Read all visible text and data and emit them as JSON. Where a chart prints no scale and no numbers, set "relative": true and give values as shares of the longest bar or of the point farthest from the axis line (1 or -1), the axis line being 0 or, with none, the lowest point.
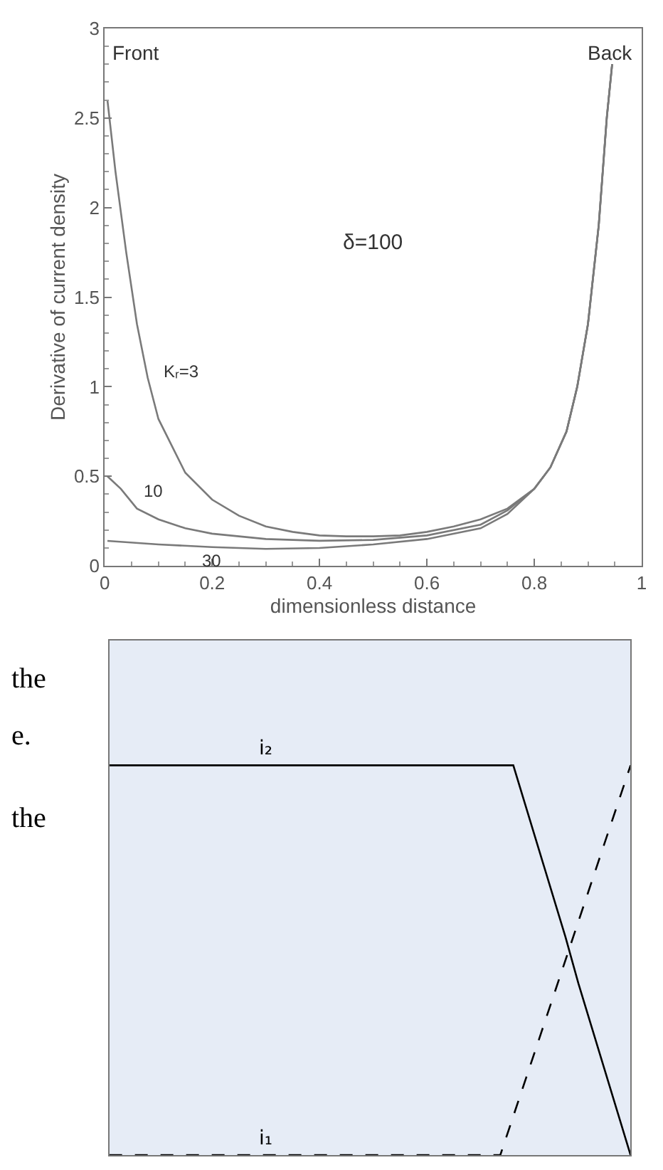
{
  "chart_data": [
    {
      "type": "line",
      "xlabel": "dimensionless distance",
      "ylabel": "Derivative of current density",
      "xlim": [
        0,
        1
      ],
      "ylim": [
        0,
        3
      ],
      "xticks": [
        0,
        {
          "value": 0.2,
          "label": "0.2"
        },
        {
          "value": 0.4,
          "label": "0.4"
        },
        {
          "value": 0.6,
          "label": "0.6"
        },
        {
          "value": 0.8,
          "label": "0.8"
        },
        1
      ],
      "yticks": [
        0,
        0.5,
        1,
        1.5,
        2,
        2.5,
        3
      ],
      "grid": false,
      "legend": false,
      "marker": "none",
      "line_style": "solid",
      "annotations": [
        "Front",
        "Back",
        "δ=100",
        {
          "text": "Kᵣ=3",
          "x": 0.08,
          "y": 1.05
        },
        {
          "text": "10",
          "x": 0.06,
          "y": 0.32
        },
        {
          "text": "30",
          "x": 0.2,
          "y": 0.105
        }
      ],
      "series": [
        {
          "color": "#7a7a7a",
          "x": [
            0.005,
            0.02,
            0.04,
            0.06,
            0.08,
            0.1,
            0.15,
            0.2,
            0.25,
            0.3,
            0.35,
            0.4,
            0.45,
            0.5,
            0.55,
            0.6,
            0.65,
            0.7,
            0.75,
            0.8,
            0.83,
            0.86,
            0.88,
            0.9,
            0.92,
            0.935,
            0.945
          ],
          "values": [
            2.6,
            2.2,
            1.75,
            1.35,
            1.05,
            0.82,
            0.52,
            0.37,
            0.28,
            0.22,
            0.19,
            0.17,
            0.165,
            0.165,
            0.17,
            0.19,
            0.22,
            0.26,
            0.32,
            0.43,
            0.55,
            0.75,
            1.0,
            1.35,
            1.9,
            2.5,
            2.8
          ]
        },
        {
          "color": "#7a7a7a",
          "x": [
            0.005,
            0.03,
            0.06,
            0.1,
            0.15,
            0.2,
            0.3,
            0.4,
            0.5,
            0.6,
            0.7,
            0.75,
            0.8,
            0.83,
            0.86,
            0.88,
            0.9,
            0.92,
            0.935,
            0.945
          ],
          "values": [
            0.5,
            0.43,
            0.32,
            0.26,
            0.21,
            0.18,
            0.15,
            0.14,
            0.145,
            0.17,
            0.23,
            0.31,
            0.43,
            0.55,
            0.75,
            1.0,
            1.35,
            1.9,
            2.5,
            2.8
          ]
        },
        {
          "color": "#7a7a7a",
          "x": [
            0.005,
            0.1,
            0.2,
            0.3,
            0.4,
            0.5,
            0.6,
            0.7,
            0.75,
            0.8,
            0.83,
            0.86,
            0.88,
            0.9,
            0.92,
            0.935,
            0.945
          ],
          "values": [
            0.14,
            0.12,
            0.105,
            0.095,
            0.1,
            0.12,
            0.15,
            0.21,
            0.29,
            0.43,
            0.55,
            0.75,
            1.0,
            1.35,
            1.9,
            2.5,
            2.8
          ]
        }
      ]
    },
    {
      "type": "line",
      "relative": true,
      "legend": false,
      "grid": false,
      "marker": "none",
      "annotations": [
        "the",
        "e.",
        "the"
      ],
      "categories": [
        null,
        null,
        null,
        null,
        null,
        null,
        null,
        null,
        null,
        null,
        null,
        null,
        null,
        null,
        null,
        null,
        null,
        null,
        null,
        null,
        null,
        null,
        null,
        null,
        null,
        null,
        null,
        null,
        null,
        null,
        null,
        null,
        null,
        null,
        null,
        null,
        null,
        null,
        null,
        null,
        null
      ],
      "series": [
        {
          "name": "i₂",
          "color": "#000000",
          "line_style": "solid",
          "values": [
            1,
            1,
            1,
            1,
            1,
            1,
            1,
            1,
            1,
            1,
            1,
            1,
            1,
            1,
            1,
            1,
            1,
            1,
            1,
            1,
            1,
            1,
            1,
            1,
            1,
            1,
            1,
            1,
            1,
            1,
            1,
            1,
            0.89,
            0.78,
            0.67,
            0.56,
            0.44,
            0.33,
            0.22,
            0.11,
            0
          ]
        },
        {
          "name": "i₁",
          "color": "#000000",
          "line_style": "dashed",
          "values": [
            0,
            0,
            0,
            0,
            0,
            0,
            0,
            0,
            0,
            0,
            0,
            0,
            0,
            0,
            0,
            0,
            0,
            0,
            0,
            0,
            0,
            0,
            0,
            0,
            0,
            0,
            0,
            0,
            0,
            0,
            0,
            0.1,
            0.2,
            0.3,
            0.4,
            0.5,
            0.6,
            0.7,
            0.8,
            0.9,
            1
          ]
        }
      ]
    }
  ]
}
